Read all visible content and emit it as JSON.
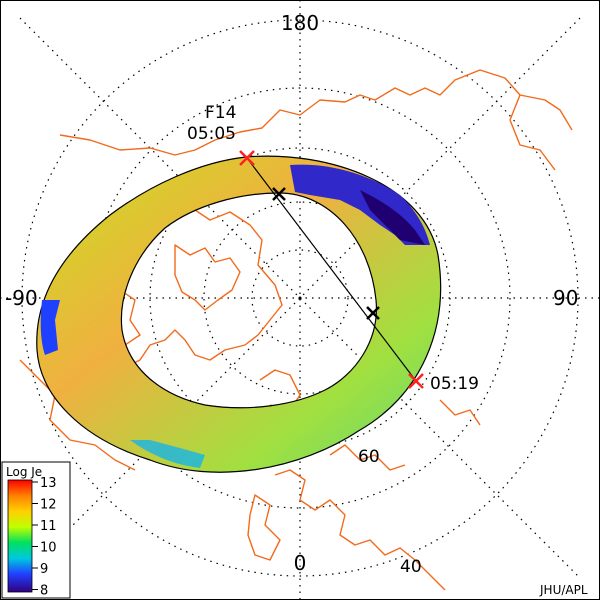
{
  "map": {
    "longitude_labels": {
      "top": "180",
      "left": "-90",
      "right": "90",
      "bottom": "0"
    },
    "latitude_labels": [
      "60",
      "40"
    ],
    "satellite": {
      "name": "F14",
      "start_time": "05:05",
      "end_time": "05:19"
    },
    "credit": "JHU/APL",
    "colors": {
      "coastline": "#f26a1b",
      "marker_endpoint": "#ff2020",
      "marker_boundary": "#000000",
      "grid": "#000000"
    }
  },
  "legend": {
    "title": "Log Je",
    "ticks": [
      "13",
      "12",
      "11",
      "10",
      "9",
      "8"
    ],
    "colors": [
      "#ff0000",
      "#ffa000",
      "#ffff00",
      "#80ff00",
      "#00e080",
      "#00b0ff",
      "#2040ff",
      "#300080"
    ]
  }
}
